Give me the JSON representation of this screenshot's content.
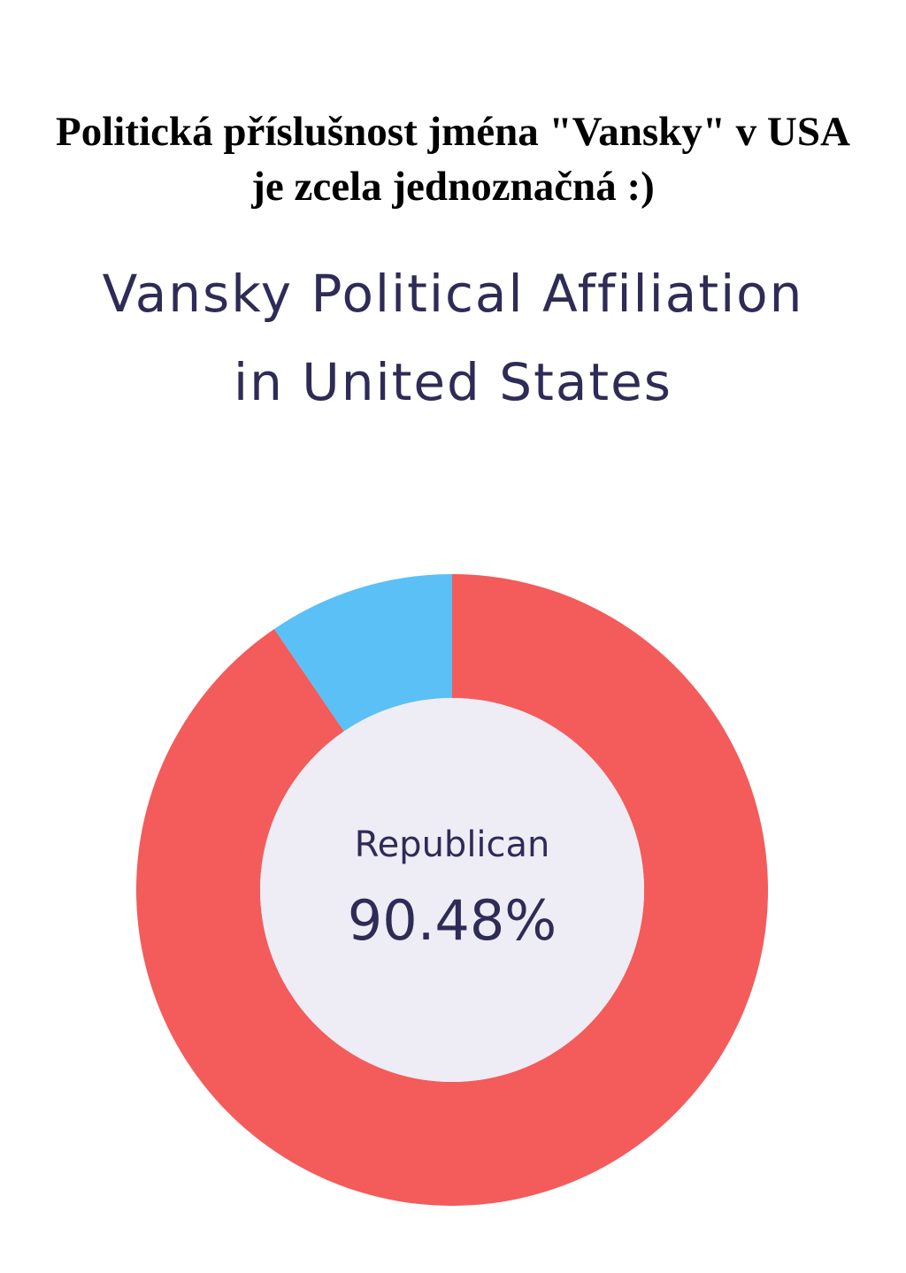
{
  "caption": {
    "line1": "Politická příslušnost jména \"Vansky\" v USA",
    "line2": "je zcela jednoznačná :)"
  },
  "chart_data": {
    "type": "pie",
    "title_line1": "Vansky Political Affiliation",
    "title_line2": "in United States",
    "slices": [
      {
        "name": "Republican",
        "value": 90.48,
        "color": "#f45b5b"
      },
      {
        "value": 9.52,
        "color": "#5bc0f5"
      }
    ],
    "center": {
      "label": "Republican",
      "value": "90.48%"
    },
    "hole_color": "#eeedf5"
  }
}
